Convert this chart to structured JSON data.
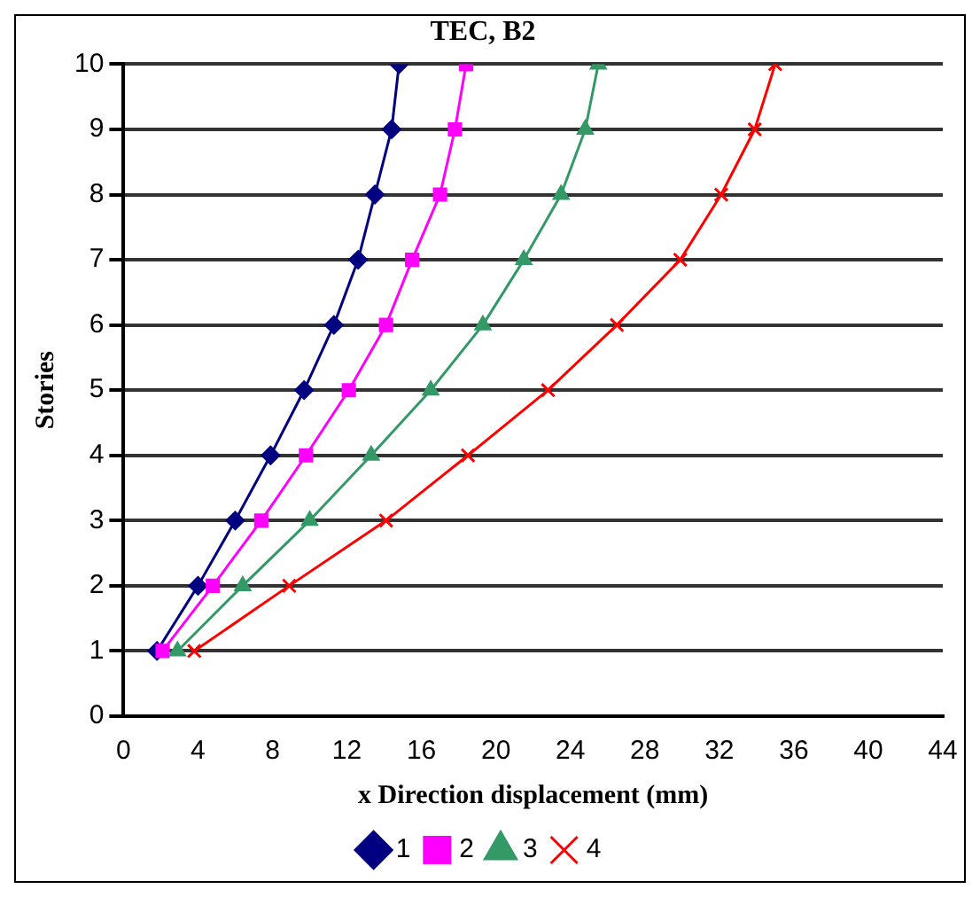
{
  "chart_data": {
    "type": "line",
    "title": "TEC, B2",
    "xlabel": "x Direction displacement (mm)",
    "ylabel": "Stories",
    "xlim": [
      0,
      44
    ],
    "xticks": [
      0,
      4,
      8,
      12,
      16,
      20,
      24,
      28,
      32,
      36,
      40,
      44
    ],
    "ylim": [
      0,
      10
    ],
    "yticks": [
      0,
      1,
      2,
      3,
      4,
      5,
      6,
      7,
      8,
      9,
      10
    ],
    "grid": "y",
    "legend": "bottom",
    "series": [
      {
        "name": "1",
        "color": "#000080",
        "marker": "diamond",
        "x": [
          1.8,
          4.0,
          6.0,
          7.9,
          9.7,
          11.3,
          12.6,
          13.5,
          14.4,
          14.8
        ],
        "values": [
          1,
          2,
          3,
          4,
          5,
          6,
          7,
          8,
          9,
          10
        ]
      },
      {
        "name": "2",
        "color": "#ff00ff",
        "marker": "square",
        "x": [
          2.1,
          4.8,
          7.4,
          9.8,
          12.1,
          14.1,
          15.5,
          17.0,
          17.8,
          18.4
        ],
        "values": [
          1,
          2,
          3,
          4,
          5,
          6,
          7,
          8,
          9,
          10
        ]
      },
      {
        "name": "3",
        "color": "#339966",
        "marker": "triangle",
        "x": [
          2.9,
          6.4,
          10.0,
          13.3,
          16.5,
          19.3,
          21.5,
          23.5,
          24.8,
          25.5
        ],
        "values": [
          1,
          2,
          3,
          4,
          5,
          6,
          7,
          8,
          9,
          10
        ]
      },
      {
        "name": "4",
        "color": "#ff0000",
        "marker": "cross",
        "x": [
          3.8,
          8.9,
          14.1,
          18.5,
          22.8,
          26.5,
          29.9,
          32.1,
          33.9,
          35.0
        ],
        "values": [
          1,
          2,
          3,
          4,
          5,
          6,
          7,
          8,
          9,
          10
        ]
      }
    ]
  }
}
